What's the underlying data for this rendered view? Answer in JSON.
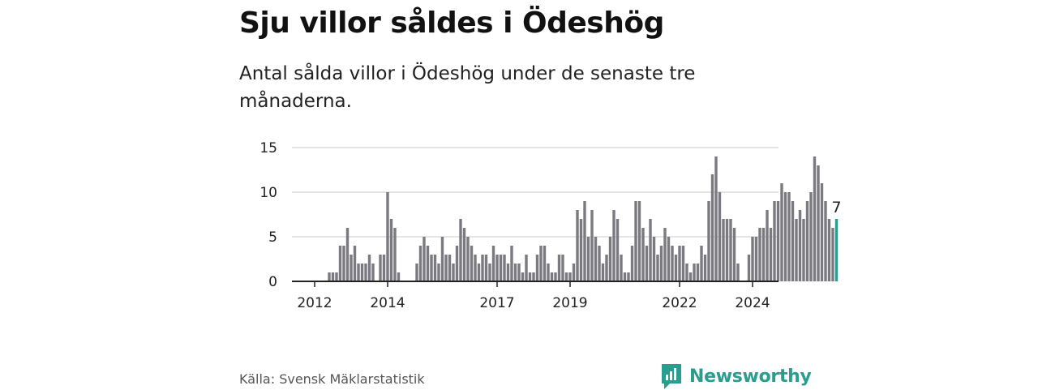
{
  "title": "Sju villor såldes i Ödeshög",
  "subtitle": "Antal sålda villor i Ödeshög under de senaste tre månaderna.",
  "source": "Källa: Svensk Mäklarstatistik",
  "brand": "Newsworthy",
  "colors": {
    "bar": "#7a7a80",
    "highlight": "#2a9d8f",
    "grid": "#dcdcdc",
    "axis": "#222222"
  },
  "chart_data": {
    "type": "bar",
    "title": "Sju villor såldes i Ödeshög",
    "xlabel": "",
    "ylabel": "",
    "ylim": [
      0,
      15
    ],
    "yticks": [
      0,
      5,
      10,
      15
    ],
    "xtick_labels": [
      {
        "label": "2012",
        "index": 0
      },
      {
        "label": "2014",
        "index": 20
      },
      {
        "label": "2017",
        "index": 50
      },
      {
        "label": "2019",
        "index": 70
      },
      {
        "label": "2022",
        "index": 100
      },
      {
        "label": "2024",
        "index": 120
      }
    ],
    "highlight_label": "7",
    "values": [
      0,
      0,
      0,
      0,
      1,
      1,
      1,
      4,
      4,
      6,
      3,
      4,
      2,
      2,
      2,
      3,
      2,
      0,
      3,
      3,
      10,
      7,
      6,
      1,
      0,
      0,
      0,
      0,
      2,
      4,
      5,
      4,
      3,
      3,
      2,
      5,
      3,
      3,
      2,
      4,
      7,
      6,
      5,
      4,
      3,
      2,
      3,
      3,
      2,
      4,
      3,
      3,
      3,
      2,
      4,
      2,
      2,
      1,
      3,
      1,
      1,
      3,
      4,
      4,
      2,
      1,
      1,
      3,
      3,
      1,
      1,
      2,
      8,
      7,
      9,
      5,
      8,
      5,
      4,
      2,
      3,
      5,
      8,
      7,
      3,
      1,
      1,
      4,
      9,
      9,
      6,
      4,
      7,
      5,
      3,
      4,
      6,
      5,
      4,
      3,
      4,
      4,
      2,
      1,
      2,
      2,
      4,
      3,
      9,
      12,
      14,
      10,
      7,
      7,
      7,
      6,
      2,
      0,
      0,
      3,
      5,
      5,
      6,
      6,
      8,
      6,
      9,
      9,
      11,
      10,
      10,
      9,
      7,
      8,
      7,
      9,
      10,
      14,
      13,
      11,
      9,
      7,
      6,
      7
    ]
  }
}
